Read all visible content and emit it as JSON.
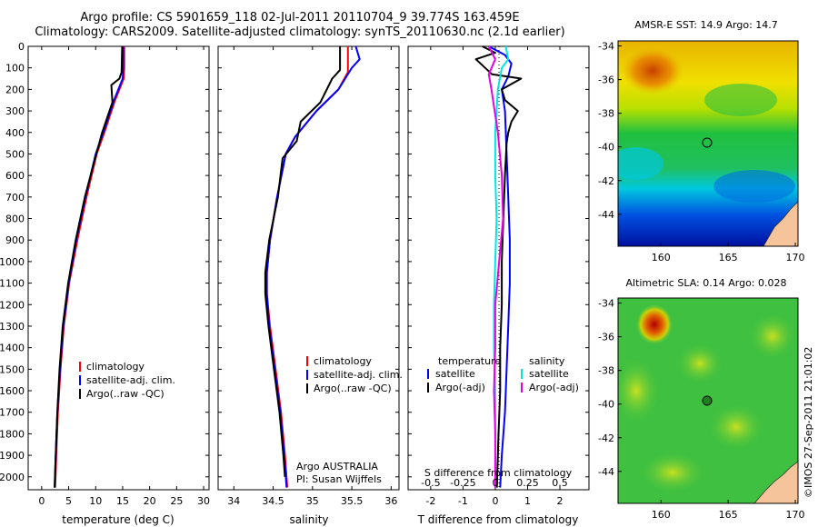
{
  "title_line1": "Argo profile: CS 5901659_118 02-Jul-2011 20110704_9 39.774S 163.459E",
  "title_line2": "Climatology: CARS2009. Satellite-adjusted climatology: synTS_20110630.nc (2.1d earlier)",
  "copyright": "©IMOS 27-Sep-2011 21:01:02",
  "colors": {
    "climatology": "#ff0000",
    "satellite": "#0000ff",
    "argo": "#000000",
    "cyan": "#00e6e6",
    "magenta": "#e600e6",
    "land": "#f5c49a"
  },
  "chart_data": [
    {
      "type": "line",
      "title": "",
      "xlabel": "temperature (deg C)",
      "ylabel": "",
      "xlim": [
        -2.5,
        31
      ],
      "ylim": [
        2060,
        0
      ],
      "xticks": [
        "0",
        "5",
        "10",
        "15",
        "20",
        "25",
        "30"
      ],
      "yticks": [
        "0",
        "100",
        "200",
        "300",
        "400",
        "500",
        "600",
        "700",
        "800",
        "900",
        "1000",
        "1100",
        "1200",
        "1300",
        "1400",
        "1500",
        "1600",
        "1700",
        "1800",
        "1900",
        "2000"
      ],
      "legend": [
        "climatology",
        "satellite-adj. clim.",
        "Argo(..raw -QC)"
      ],
      "series": [
        {
          "name": "climatology",
          "depth": [
            0,
            100,
            150,
            250,
            400,
            500,
            700,
            900,
            1100,
            1300,
            1500,
            1700,
            1900,
            2050
          ],
          "values": [
            15.3,
            15.3,
            15.2,
            13.6,
            11.6,
            10.2,
            8.3,
            6.6,
            5.1,
            4.1,
            3.5,
            3.0,
            2.7,
            2.5
          ]
        },
        {
          "name": "satellite-adj. clim.",
          "depth": [
            0,
            100,
            150,
            250,
            400,
            500,
            700,
            900,
            1100,
            1300,
            1500,
            1700,
            1900,
            2050
          ],
          "values": [
            15.1,
            15.1,
            15.0,
            13.4,
            11.4,
            10.0,
            8.1,
            6.4,
            5.0,
            4.0,
            3.4,
            2.9,
            2.6,
            2.4
          ]
        },
        {
          "name": "Argo(..raw -QC)",
          "depth": [
            0,
            120,
            150,
            180,
            260,
            400,
            520,
            700,
            900,
            1100,
            1300,
            1500,
            1700,
            1900,
            2050
          ],
          "values": [
            14.9,
            14.8,
            14.4,
            12.9,
            13.1,
            11.2,
            9.9,
            8.0,
            6.3,
            4.9,
            3.9,
            3.3,
            2.9,
            2.6,
            2.4
          ]
        }
      ]
    },
    {
      "type": "line",
      "xlabel": "salinity",
      "xlim": [
        33.8,
        36.1
      ],
      "ylim": [
        2060,
        0
      ],
      "xticks": [
        "34",
        "34.5",
        "35",
        "35.5",
        "36"
      ],
      "legend": [
        "climatology",
        "satellite-adj. clim.",
        "Argo(..raw -QC)"
      ],
      "annotation": [
        "Argo AUSTRALIA",
        "PI: Susan Wijffels"
      ],
      "series": [
        {
          "name": "climatology",
          "depth": [
            0,
            120,
            200,
            300,
            420,
            500,
            700,
            900,
            1050,
            1150,
            1300,
            1500,
            1700,
            1900,
            2050
          ],
          "values": [
            35.45,
            35.45,
            35.33,
            35.05,
            34.78,
            34.66,
            34.55,
            34.46,
            34.42,
            34.42,
            34.46,
            34.53,
            34.6,
            34.65,
            34.68
          ]
        },
        {
          "name": "satellite-adj. clim.",
          "depth": [
            0,
            60,
            100,
            200,
            300,
            420,
            500,
            700,
            900,
            1050,
            1150,
            1300,
            1500,
            1700,
            1900,
            2050
          ],
          "values": [
            35.55,
            35.6,
            35.5,
            35.33,
            35.05,
            34.78,
            34.66,
            34.55,
            34.46,
            34.42,
            34.42,
            34.45,
            34.52,
            34.59,
            34.64,
            34.67
          ]
        },
        {
          "name": "Argo(..raw -QC)",
          "depth": [
            0,
            110,
            150,
            260,
            350,
            440,
            520,
            700,
            900,
            1050,
            1150,
            1300,
            1500,
            1700,
            1900,
            2000
          ],
          "values": [
            35.35,
            35.35,
            35.25,
            35.1,
            34.85,
            34.8,
            34.62,
            34.56,
            34.45,
            34.4,
            34.4,
            34.44,
            34.51,
            34.58,
            34.63,
            34.65
          ]
        }
      ]
    },
    {
      "type": "line",
      "xlabel": "T difference from climatology",
      "xlabel_top": "S difference from climatology",
      "xlim": [
        -2.7,
        2.9
      ],
      "ylim": [
        2060,
        0
      ],
      "xticks": [
        "-2",
        "-1",
        "0",
        "1",
        "2"
      ],
      "xticks_top": [
        "-0.5",
        "-0.25",
        "0",
        "0.25",
        "0.5"
      ],
      "legend_titles": [
        "temperature",
        "salinity"
      ],
      "legend_left": [
        "satellite",
        "Argo(-adj)"
      ],
      "legend_right": [
        "satellite",
        "Argo(-adj)"
      ],
      "series": [
        {
          "name": "T satellite",
          "depth": [
            0,
            40,
            80,
            140,
            200,
            300,
            500,
            700,
            900,
            1100,
            1300,
            1500,
            1700,
            1900,
            2050
          ],
          "values": [
            -0.2,
            0.3,
            0.5,
            0.4,
            0.2,
            0.3,
            0.35,
            0.4,
            0.45,
            0.45,
            0.4,
            0.35,
            0.3,
            0.2,
            0.15
          ]
        },
        {
          "name": "T Argo(-adj)",
          "depth": [
            0,
            30,
            60,
            130,
            150,
            200,
            250,
            300,
            350,
            400,
            450,
            600,
            800,
            1000,
            1200,
            1400,
            1600,
            1800,
            2050
          ],
          "values": [
            -0.4,
            0,
            -0.6,
            -0.1,
            0.8,
            0.2,
            0.3,
            0.7,
            0.5,
            0.4,
            0.35,
            0.3,
            0.25,
            0.2,
            0.2,
            0.15,
            0.15,
            0.1,
            0.05
          ]
        },
        {
          "name": "S satellite",
          "depth": [
            0,
            60,
            100,
            200,
            400,
            600,
            800,
            1000,
            1200,
            1400,
            1600,
            1800,
            2050
          ],
          "values": [
            0.08,
            0.1,
            0.05,
            0.02,
            0,
            0,
            0.01,
            0,
            -0.01,
            -0.01,
            0,
            0,
            0
          ]
        },
        {
          "name": "S Argo(-adj)",
          "depth": [
            0,
            60,
            130,
            200,
            400,
            600,
            800,
            1000,
            1200,
            1400,
            1600,
            1800,
            2050
          ],
          "values": [
            -0.05,
            0,
            -0.05,
            -0.03,
            0.02,
            0.05,
            0.06,
            0.03,
            0,
            0,
            -0.01,
            0,
            0
          ]
        }
      ]
    }
  ],
  "maps": [
    {
      "title": "AMSR-E SST: 14.9 Argo: 14.7",
      "yticks": [
        "-34",
        "-36",
        "-38",
        "-40",
        "-42",
        "-44"
      ],
      "xticks": [
        "160",
        "165",
        "170"
      ]
    },
    {
      "title": "Altimetric SLA: 0.14 Argo: 0.028",
      "yticks": [
        "-34",
        "-36",
        "-38",
        "-40",
        "-42",
        "-44"
      ],
      "xticks": [
        "160",
        "165",
        "170"
      ]
    }
  ]
}
